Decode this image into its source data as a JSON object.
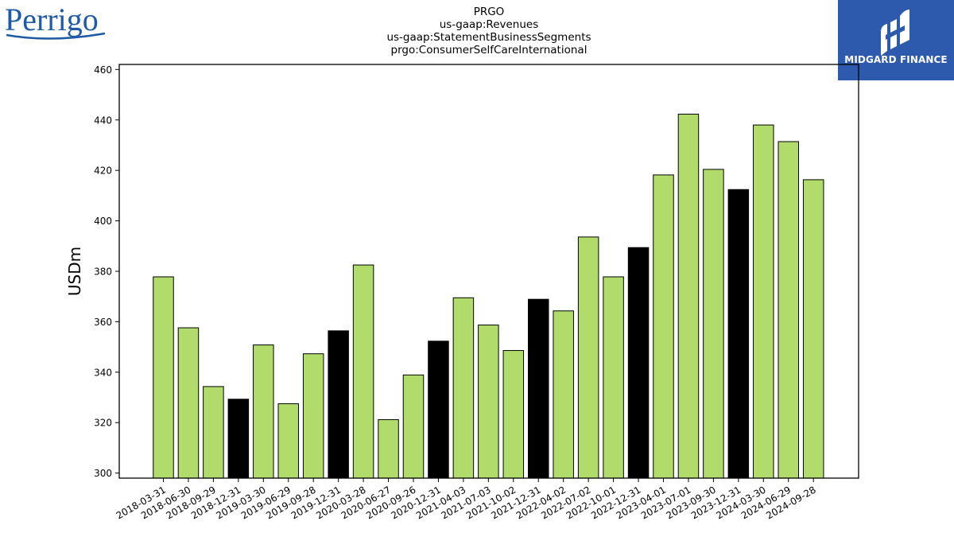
{
  "logos": {
    "left": {
      "text": "Perrigo",
      "color": "#1f5aa5"
    },
    "right": {
      "text": "MIDGARD FINANCE",
      "background": "#2d5aad"
    }
  },
  "chart_data": {
    "type": "bar",
    "title_lines": [
      "PRGO",
      "us-gaap:Revenues",
      "us-gaap:StatementBusinessSegments",
      "prgo:ConsumerSelfCareInternational"
    ],
    "ylabel": "USDm",
    "xlabel": "",
    "ylim": [
      298,
      462
    ],
    "yticks": [
      300,
      320,
      340,
      360,
      380,
      400,
      420,
      440,
      460
    ],
    "grid": false,
    "colors": {
      "quarter": "#b1dc6b",
      "year_end": "#000000",
      "edge": "#000000"
    },
    "categories": [
      "2018-03-31",
      "2018-06-30",
      "2018-09-29",
      "2018-12-31",
      "2019-03-30",
      "2019-06-29",
      "2019-09-28",
      "2019-12-31",
      "2020-03-28",
      "2020-06-27",
      "2020-09-26",
      "2020-12-31",
      "2021-04-03",
      "2021-07-03",
      "2021-10-02",
      "2021-12-31",
      "2022-04-02",
      "2022-07-02",
      "2022-10-01",
      "2022-12-31",
      "2023-04-01",
      "2023-07-01",
      "2023-09-30",
      "2023-12-31",
      "2024-03-30",
      "2024-06-29",
      "2024-09-28"
    ],
    "values": [
      377.8,
      357.6,
      334.3,
      329.3,
      350.8,
      327.5,
      347.3,
      356.4,
      382.5,
      321.2,
      338.9,
      352.3,
      369.5,
      358.7,
      348.6,
      368.9,
      364.3,
      393.6,
      377.8,
      389.4,
      418.2,
      442.3,
      420.4,
      412.4,
      438.0,
      431.4,
      416.3
    ],
    "year_end": [
      false,
      false,
      false,
      true,
      false,
      false,
      false,
      true,
      false,
      false,
      false,
      true,
      false,
      false,
      false,
      true,
      false,
      false,
      false,
      true,
      false,
      false,
      false,
      true,
      false,
      false,
      false
    ]
  }
}
